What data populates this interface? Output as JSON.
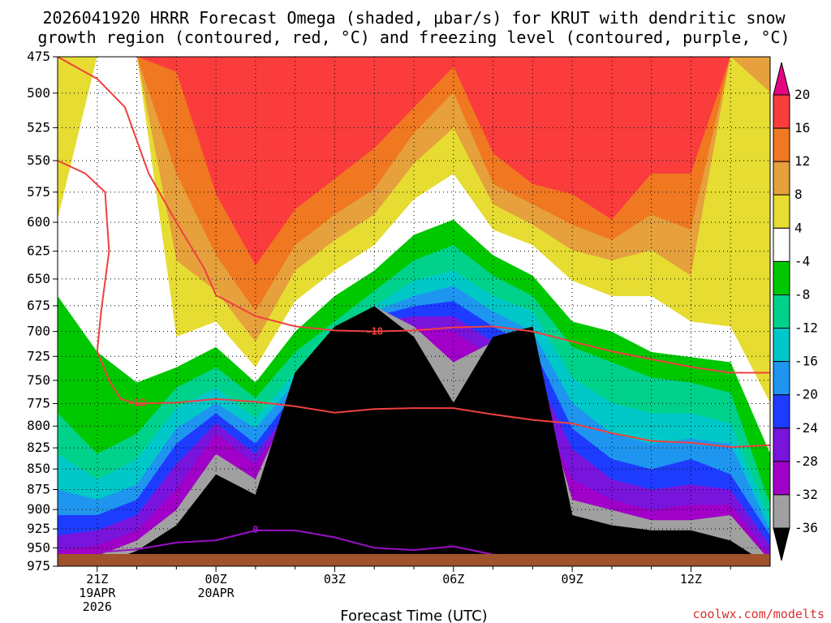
{
  "chart_data": {
    "type": "heatmap",
    "title_line1": "2026041920 HRRR Forecast Omega (shaded, μbar/s) for KRUT with dendritic snow",
    "title_line2": "growth region (contoured, red, °C) and freezing level (contoured, purple, °C)",
    "xlabel": "Forecast Time (UTC)",
    "x_ticks": [
      {
        "h": 0,
        "lines": [
          "21Z",
          "19APR",
          "2026"
        ]
      },
      {
        "h": 3,
        "lines": [
          "00Z",
          "20APR"
        ]
      },
      {
        "h": 6,
        "lines": [
          "03Z"
        ]
      },
      {
        "h": 9,
        "lines": [
          "06Z"
        ]
      },
      {
        "h": 12,
        "lines": [
          "09Z"
        ]
      },
      {
        "h": 15,
        "lines": [
          "12Z"
        ]
      }
    ],
    "xlim_hours": [
      -1,
      17
    ],
    "y_ticks": [
      475,
      500,
      525,
      550,
      575,
      600,
      625,
      650,
      675,
      700,
      725,
      750,
      775,
      800,
      825,
      850,
      875,
      900,
      925,
      950,
      975
    ],
    "ylim_hpa": [
      475,
      975
    ],
    "yscale": "log-pressure",
    "grid": true,
    "colorbar": {
      "labels": [
        "20",
        "16",
        "12",
        "8",
        "4",
        "-4",
        "-8",
        "-12",
        "-16",
        "-20",
        "-24",
        "-28",
        "-32",
        "-36"
      ],
      "colors": [
        "#e40480",
        "#fa3c3c",
        "#f07820",
        "#e6a03c",
        "#e6dc32",
        "#ffffff",
        "#00c800",
        "#00d28c",
        "#00c8c8",
        "#1e96f0",
        "#1e3cff",
        "#7814dc",
        "#a000c8",
        "#a0a0a0",
        "#000000"
      ]
    },
    "omega_columns": [
      {
        "h": -1.0,
        "b": [
          null,
          null,
          null,
          null,
          0.32,
          0.47,
          0.7,
          0.78,
          0.85,
          0.9,
          0.94,
          0.97,
          0.99,
          1.0
        ]
      },
      {
        "h": 0.0,
        "b": [
          null,
          null,
          null,
          null,
          0.0,
          0.58,
          0.78,
          0.83,
          0.87,
          0.9,
          0.93,
          0.96,
          0.98,
          1.0
        ]
      },
      {
        "h": 1.0,
        "b": [
          null,
          null,
          null,
          null,
          0.0,
          0.64,
          0.74,
          0.79,
          0.84,
          0.87,
          0.9,
          0.93,
          0.95,
          0.97
        ]
      },
      {
        "h": 2.0,
        "b": [
          0.0,
          0.03,
          0.23,
          0.4,
          0.55,
          0.61,
          0.65,
          0.69,
          0.73,
          0.76,
          0.8,
          0.85,
          0.89,
          0.92
        ]
      },
      {
        "h": 3.0,
        "b": [
          0.0,
          0.27,
          0.39,
          0.46,
          0.52,
          0.57,
          0.61,
          0.65,
          0.68,
          0.7,
          0.72,
          0.74,
          0.78,
          0.82
        ]
      },
      {
        "h": 4.0,
        "b": [
          0.0,
          0.41,
          0.5,
          0.56,
          0.61,
          0.64,
          0.67,
          0.71,
          0.73,
          0.76,
          0.78,
          0.8,
          0.83,
          0.86
        ]
      },
      {
        "h": 5.0,
        "b": [
          0.0,
          0.3,
          0.37,
          0.42,
          0.48,
          0.54,
          0.58,
          0.62,
          0.64,
          0.66,
          0.68,
          0.69,
          0.66,
          0.62
        ]
      },
      {
        "h": 6.0,
        "b": [
          0.0,
          0.24,
          0.31,
          0.36,
          0.42,
          0.47,
          0.52,
          0.55,
          0.57,
          0.58,
          0.59,
          0.6,
          0.55,
          0.53
        ]
      },
      {
        "h": 7.0,
        "b": [
          0.0,
          0.18,
          0.26,
          0.31,
          0.37,
          0.42,
          0.46,
          0.49,
          0.5,
          0.51,
          0.52,
          0.53,
          0.49,
          0.49
        ]
      },
      {
        "h": 8.0,
        "b": [
          0.0,
          0.1,
          0.15,
          0.21,
          0.28,
          0.35,
          0.4,
          0.44,
          0.47,
          0.49,
          0.51,
          0.53,
          0.53,
          0.55
        ]
      },
      {
        "h": 9.0,
        "b": [
          0.0,
          0.02,
          0.07,
          0.14,
          0.23,
          0.32,
          0.37,
          0.42,
          0.45,
          0.48,
          0.51,
          0.54,
          0.6,
          0.68
        ]
      },
      {
        "h": 10.0,
        "b": [
          0.0,
          0.19,
          0.25,
          0.29,
          0.34,
          0.39,
          0.43,
          0.47,
          0.5,
          0.53,
          0.56,
          0.59,
          0.56,
          0.55
        ]
      },
      {
        "h": 11.0,
        "b": [
          0.0,
          0.25,
          0.29,
          0.33,
          0.37,
          0.43,
          0.47,
          0.5,
          0.54,
          0.57,
          0.61,
          0.66,
          0.61,
          0.53
        ]
      },
      {
        "h": 12.0,
        "b": [
          0.0,
          0.27,
          0.33,
          0.38,
          0.44,
          0.52,
          0.57,
          0.63,
          0.68,
          0.73,
          0.77,
          0.83,
          0.87,
          0.9
        ]
      },
      {
        "h": 13.0,
        "b": [
          0.0,
          0.32,
          0.36,
          0.4,
          0.47,
          0.54,
          0.6,
          0.68,
          0.74,
          0.79,
          0.83,
          0.87,
          0.89,
          0.92
        ]
      },
      {
        "h": 14.0,
        "b": [
          0.0,
          0.23,
          0.31,
          0.38,
          0.47,
          0.58,
          0.63,
          0.7,
          0.76,
          0.81,
          0.85,
          0.89,
          0.91,
          0.93
        ]
      },
      {
        "h": 15.0,
        "b": [
          0.0,
          0.23,
          0.34,
          0.43,
          0.52,
          0.59,
          0.64,
          0.7,
          0.75,
          0.79,
          0.84,
          0.88,
          0.91,
          0.93
        ]
      },
      {
        "h": 16.0,
        "b": [
          0.0,
          0.0,
          0.0,
          0.0,
          0.53,
          0.6,
          0.66,
          0.72,
          0.76,
          0.82,
          0.85,
          0.88,
          0.9,
          0.95
        ]
      },
      {
        "h": 16.6,
        "b": [
          0.0,
          0.0,
          0.0,
          0.07,
          0.68,
          0.78,
          0.88,
          0.91,
          0.93,
          0.94,
          0.96,
          0.98,
          0.99,
          1.0
        ]
      }
    ],
    "contours": [
      {
        "label": "-18",
        "color": "#f04040",
        "label_at": [
          7.0,
          700
        ],
        "points": [
          [
            -1.0,
            475
          ],
          [
            0.0,
            490
          ],
          [
            0.7,
            510
          ],
          [
            1.3,
            560
          ],
          [
            2.0,
            600
          ],
          [
            2.7,
            640
          ],
          [
            3.0,
            665
          ],
          [
            4.0,
            685
          ],
          [
            5.0,
            695
          ],
          [
            6.0,
            699
          ],
          [
            7.0,
            700
          ],
          [
            8.0,
            699
          ],
          [
            9.0,
            696
          ],
          [
            10.0,
            695
          ],
          [
            11.0,
            700
          ],
          [
            12.0,
            710
          ],
          [
            13.0,
            720
          ],
          [
            14.0,
            728
          ],
          [
            15.0,
            736
          ],
          [
            16.0,
            742
          ],
          [
            17.0,
            742
          ]
        ]
      },
      {
        "label": "-12",
        "color": "#f04040",
        "label_at": [
          1.0,
          774
        ],
        "points": [
          [
            -1.0,
            550
          ],
          [
            -0.3,
            560
          ],
          [
            0.2,
            575
          ],
          [
            0.3,
            625
          ],
          [
            0.1,
            680
          ],
          [
            0.0,
            720
          ],
          [
            0.3,
            750
          ],
          [
            0.6,
            770
          ],
          [
            1.0,
            775
          ],
          [
            2.0,
            774
          ],
          [
            3.0,
            770
          ],
          [
            4.0,
            773
          ],
          [
            5.0,
            778
          ],
          [
            6.0,
            785
          ],
          [
            7.0,
            781
          ],
          [
            8.0,
            780
          ],
          [
            9.0,
            780
          ],
          [
            10.0,
            787
          ],
          [
            11.0,
            793
          ],
          [
            12.0,
            797
          ],
          [
            13.0,
            808
          ],
          [
            14.0,
            817
          ],
          [
            15.0,
            819
          ],
          [
            16.0,
            824
          ],
          [
            17.0,
            822
          ]
        ]
      },
      {
        "label": "0",
        "color": "#9a10c8",
        "label_at": [
          4.0,
          926
        ],
        "points": [
          [
            0.0,
            956
          ],
          [
            1.0,
            952
          ],
          [
            2.0,
            943
          ],
          [
            3.0,
            940
          ],
          [
            4.0,
            927
          ],
          [
            5.0,
            927
          ],
          [
            6.0,
            936
          ],
          [
            7.0,
            950
          ],
          [
            8.0,
            953
          ],
          [
            9.0,
            948
          ],
          [
            10.0,
            959
          ],
          [
            11.0,
            962
          ],
          [
            12.0,
            965
          ],
          [
            13.0,
            967
          ],
          [
            14.0,
            970
          ],
          [
            15.0,
            972
          ],
          [
            16.0,
            969
          ],
          [
            16.6,
            973
          ]
        ]
      }
    ],
    "watermark": "coolwx.com/modelts"
  }
}
